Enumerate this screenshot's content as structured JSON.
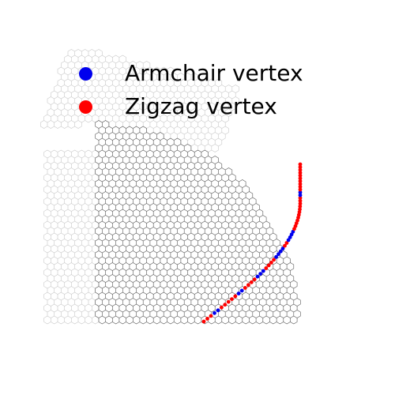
{
  "legend": {
    "armchair": {
      "label": "Armchair vertex",
      "color": "#0000ee"
    },
    "zigzag": {
      "label": "Zigzag vertex",
      "color": "#ff0000"
    }
  },
  "lattice": {
    "bond_color_dark": "#555555",
    "bond_color_light": "#c8c8c8"
  }
}
